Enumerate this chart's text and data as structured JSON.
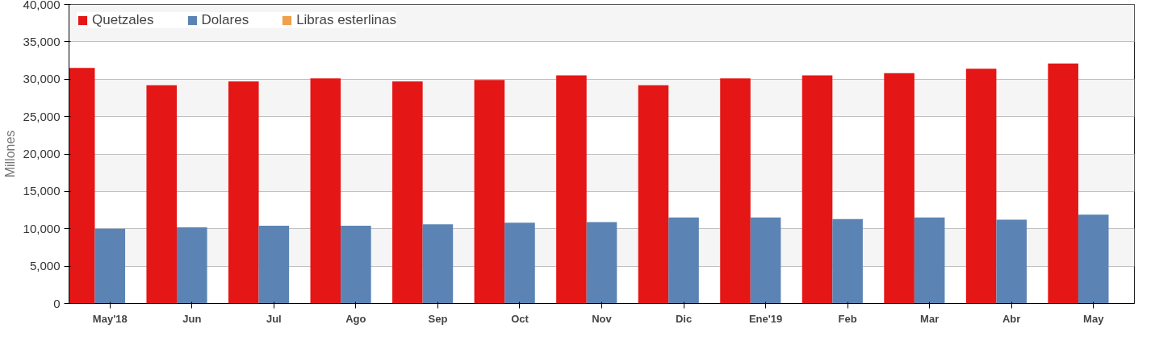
{
  "chart_data": {
    "type": "bar",
    "ylabel": "Millones",
    "categories": [
      "May'18",
      "Jun",
      "Jul",
      "Ago",
      "Sep",
      "Oct",
      "Nov",
      "Dic",
      "Ene'19",
      "Feb",
      "Mar",
      "Abr",
      "May"
    ],
    "series": [
      {
        "name": "Quetzales",
        "color": "#e41616",
        "values": [
          31500,
          29200,
          29700,
          30100,
          29700,
          29900,
          30500,
          29200,
          30100,
          30500,
          30800,
          31400,
          32100
        ]
      },
      {
        "name": "Dolares",
        "color": "#5b84b4",
        "values": [
          10000,
          10200,
          10400,
          10400,
          10600,
          10800,
          10900,
          11500,
          11500,
          11300,
          11500,
          11200,
          11900
        ]
      },
      {
        "name": "Libras esterlinas",
        "color": "#f0a04c",
        "values": [
          0,
          0,
          0,
          0,
          0,
          0,
          0,
          0,
          0,
          0,
          0,
          0,
          0
        ]
      }
    ],
    "ylim": [
      0,
      40000
    ],
    "yticks": [
      0,
      {
        "value": 5000,
        "label": "5,000"
      },
      {
        "value": 10000,
        "label": "10,000"
      },
      {
        "value": 15000,
        "label": "15,000"
      },
      {
        "value": 20000,
        "label": "20,000"
      },
      {
        "value": 25000,
        "label": "25,000"
      },
      {
        "value": 30000,
        "label": "30,000"
      },
      {
        "value": 35000,
        "label": "35,000"
      },
      {
        "value": 40000,
        "label": "40,000"
      }
    ],
    "grid": "y",
    "legend": "top left"
  }
}
